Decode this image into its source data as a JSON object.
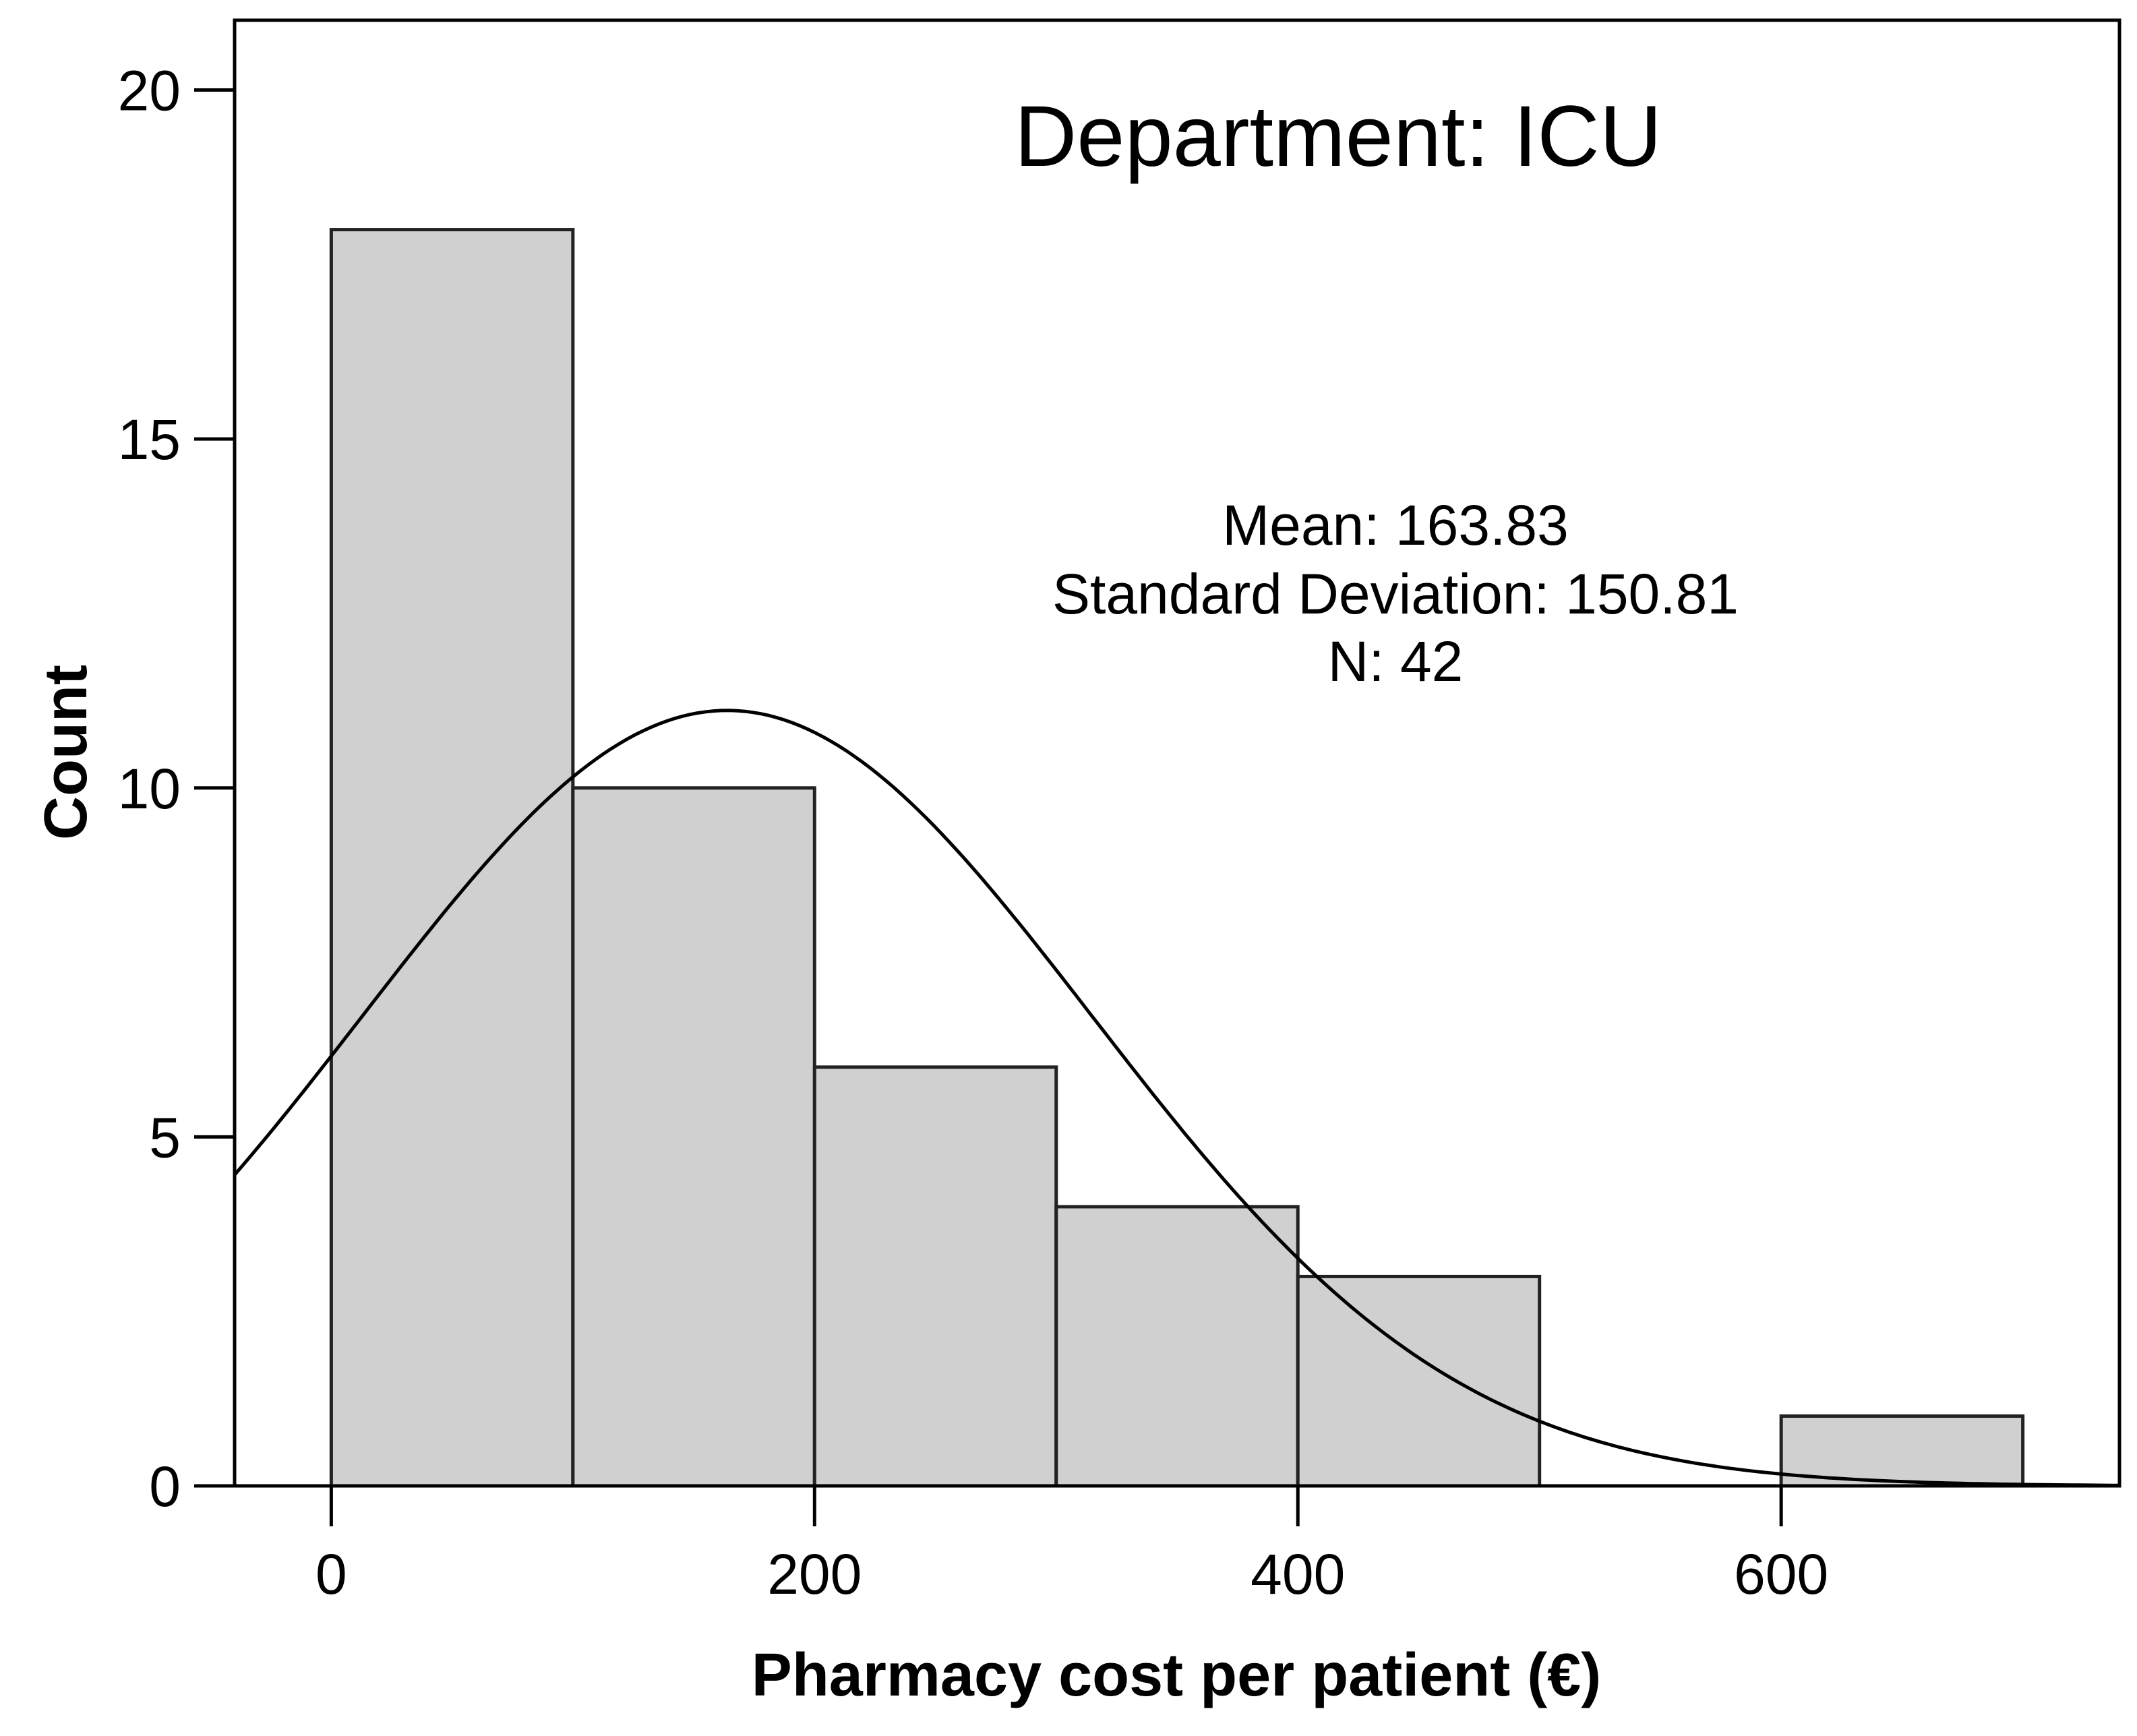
{
  "chart_data": {
    "type": "bar",
    "subtype": "histogram",
    "title": "Department: ICU",
    "xlabel": "Pharmacy cost per patient (€)",
    "ylabel": "Count",
    "xlim": [
      -40,
      740
    ],
    "ylim": [
      0,
      21
    ],
    "x_ticks": [
      0,
      200,
      400,
      600
    ],
    "y_ticks": [
      0,
      5,
      10,
      15,
      20
    ],
    "bins": [
      {
        "start": 0,
        "end": 100,
        "count": 18
      },
      {
        "start": 100,
        "end": 200,
        "count": 10
      },
      {
        "start": 200,
        "end": 300,
        "count": 6
      },
      {
        "start": 300,
        "end": 400,
        "count": 4
      },
      {
        "start": 400,
        "end": 500,
        "count": 3
      },
      {
        "start": 500,
        "end": 600,
        "count": 0
      },
      {
        "start": 600,
        "end": 700,
        "count": 1
      }
    ],
    "normal_curve": {
      "mean": 163.83,
      "sd": 150.81,
      "n": 42,
      "bin_width": 100
    },
    "stats": {
      "mean_label": "Mean: 163.83",
      "sd_label": "Standard Deviation: 150.81",
      "n_label": "N: 42"
    },
    "colors": {
      "bar_fill": "#d0d0d0",
      "bar_stroke": "#222222",
      "line": "#000000",
      "background": "#ffffff"
    }
  }
}
